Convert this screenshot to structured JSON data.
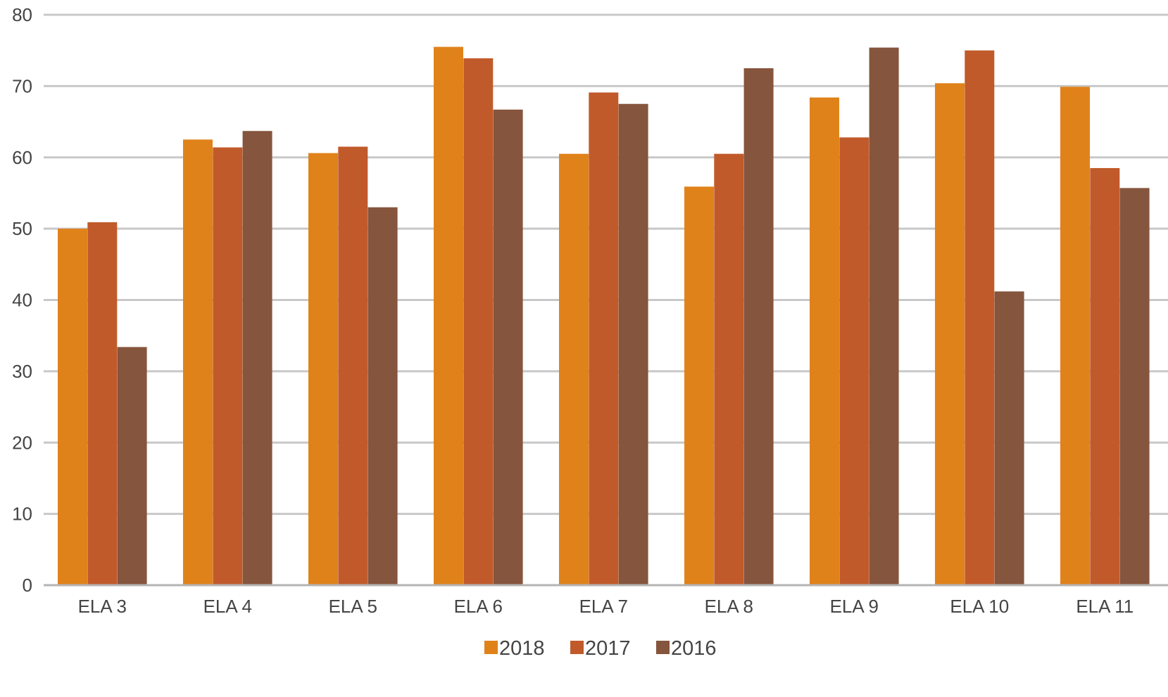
{
  "chart_data": {
    "type": "bar",
    "title": "",
    "xlabel": "",
    "ylabel": "",
    "categories": [
      "ELA 3",
      "ELA 4",
      "ELA 5",
      "ELA 6",
      "ELA 7",
      "ELA 8",
      "ELA 9",
      "ELA 10",
      "ELA 11"
    ],
    "series": [
      {
        "name": "2018",
        "color": "#E0821A",
        "values": [
          50.0,
          62.5,
          60.6,
          75.5,
          60.5,
          55.9,
          68.4,
          70.4,
          69.9
        ]
      },
      {
        "name": "2017",
        "color": "#C15A2A",
        "values": [
          50.9,
          61.4,
          61.5,
          73.9,
          69.1,
          60.5,
          62.8,
          75.0,
          58.5
        ]
      },
      {
        "name": "2016",
        "color": "#85553D",
        "values": [
          33.4,
          63.7,
          53.0,
          66.7,
          67.5,
          72.5,
          75.4,
          41.2,
          55.7
        ]
      }
    ],
    "ylim": [
      0,
      80
    ],
    "yticks": [
      "0",
      "10",
      "20",
      "30",
      "40",
      "50",
      "60",
      "70",
      "80"
    ],
    "grid": true,
    "legend_position": "bottom"
  }
}
